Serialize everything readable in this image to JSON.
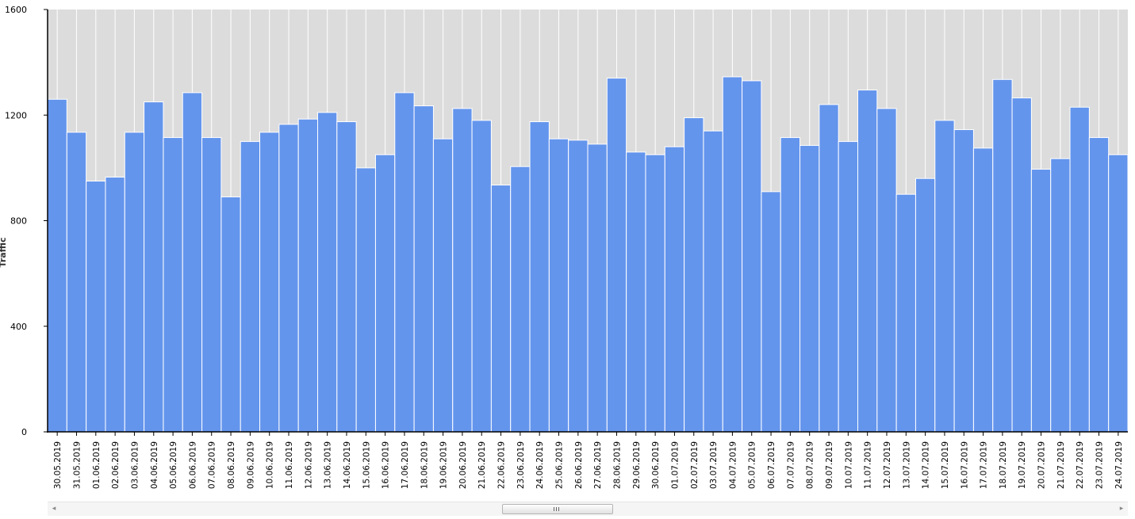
{
  "chart_data": {
    "type": "bar",
    "title": "",
    "xlabel": "",
    "ylabel": "Traffic",
    "ylim": [
      0,
      1600
    ],
    "yticks": [
      "0",
      "400",
      "800",
      "1200",
      "1600"
    ],
    "grid": "vertical",
    "legend": "none",
    "categories": [
      "30.05.2019",
      "31.05.2019",
      "01.06.2019",
      "02.06.2019",
      "03.06.2019",
      "04.06.2019",
      "05.06.2019",
      "06.06.2019",
      "07.06.2019",
      "08.06.2019",
      "09.06.2019",
      "10.06.2019",
      "11.06.2019",
      "12.06.2019",
      "13.06.2019",
      "14.06.2019",
      "15.06.2019",
      "16.06.2019",
      "17.06.2019",
      "18.06.2019",
      "19.06.2019",
      "20.06.2019",
      "21.06.2019",
      "22.06.2019",
      "23.06.2019",
      "24.06.2019",
      "25.06.2019",
      "26.06.2019",
      "27.06.2019",
      "28.06.2019",
      "29.06.2019",
      "30.06.2019",
      "01.07.2019",
      "02.07.2019",
      "03.07.2019",
      "04.07.2019",
      "05.07.2019",
      "06.07.2019",
      "07.07.2019",
      "08.07.2019",
      "09.07.2019",
      "10.07.2019",
      "11.07.2019",
      "12.07.2019",
      "13.07.2019",
      "14.07.2019",
      "15.07.2019",
      "16.07.2019",
      "17.07.2019",
      "18.07.2019",
      "19.07.2019",
      "20.07.2019",
      "21.07.2019",
      "22.07.2019",
      "23.07.2019",
      "24.07.2019"
    ],
    "values": [
      1260,
      1135,
      950,
      965,
      1135,
      1250,
      1115,
      1285,
      1115,
      890,
      1100,
      1135,
      1165,
      1185,
      1210,
      1175,
      1000,
      1050,
      1285,
      1235,
      1110,
      1225,
      1180,
      935,
      1005,
      1175,
      1110,
      1105,
      1090,
      1340,
      1060,
      1050,
      1080,
      1190,
      1140,
      1345,
      1330,
      910,
      1115,
      1085,
      1240,
      1100,
      1295,
      1225,
      900,
      960,
      1180,
      1145,
      1075,
      1335,
      1265,
      995,
      1035,
      1230,
      1115,
      1050
    ],
    "colors": {
      "bar": "#6495ed",
      "bar_stroke": "#ffffff",
      "plot_background": "#dcdcdc",
      "grid": "#ffffff",
      "axis": "#000000",
      "text": "#000000"
    }
  },
  "scrollbar": {
    "left_arrow": "◂",
    "right_arrow": "▸"
  }
}
